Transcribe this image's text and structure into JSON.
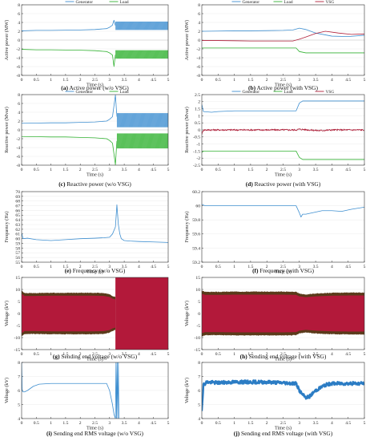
{
  "colors": {
    "generator": "#3f8fd0",
    "load": "#33b233",
    "vsg": "#b0203a",
    "voltage_fill": "#b3193a",
    "voltage_edge": "#5a3a1a"
  },
  "chart_data": [
    {
      "id": "a",
      "type": "line",
      "caption_label": "(a)",
      "caption_text": "Active power (w/o VSG)",
      "xlabel": "Time (s)",
      "ylabel": "Active power (MW)",
      "xlim": [
        0,
        5
      ],
      "ylim": [
        -8,
        8
      ],
      "xticks": [
        "0",
        "0.5",
        "1",
        "1.5",
        "2",
        "2.5",
        "3",
        "3.5",
        "4",
        "4.5",
        "5"
      ],
      "yticks": [
        "-8",
        "-6",
        "-4",
        "-2",
        "0",
        "2",
        "4",
        "6",
        "8"
      ],
      "ytick_values": [
        -8,
        -6,
        -4,
        -2,
        0,
        2,
        4,
        6,
        8
      ],
      "legend": [
        "Generator",
        "Load"
      ],
      "series": [
        {
          "name": "Generator",
          "color": "#3f8fd0",
          "band_after": 3.2,
          "band_low": 2.3,
          "band_high": 4.2,
          "x": [
            0,
            0.5,
            1,
            1.5,
            2,
            2.5,
            2.9,
            3.0,
            3.1,
            3.15,
            3.2
          ],
          "y": [
            2.1,
            2.2,
            2.2,
            2.25,
            2.3,
            2.4,
            2.6,
            2.9,
            3.4,
            4.5,
            3.3
          ]
        },
        {
          "name": "Load",
          "color": "#33b233",
          "band_after": 3.2,
          "band_low": -4.2,
          "band_high": -2.3,
          "x": [
            0,
            0.5,
            1,
            1.5,
            2,
            2.5,
            2.9,
            3.0,
            3.1,
            3.15,
            3.2
          ],
          "y": [
            -2.1,
            -2.2,
            -2.2,
            -2.25,
            -2.3,
            -2.4,
            -2.6,
            -2.9,
            -3.4,
            -6.0,
            -3.3
          ]
        }
      ]
    },
    {
      "id": "b",
      "type": "line",
      "caption_label": "(b)",
      "caption_text": "Active power (with VSG)",
      "xlabel": "Time (s)",
      "ylabel": "Active power (MW)",
      "xlim": [
        0,
        5
      ],
      "ylim": [
        -8,
        8
      ],
      "xticks": [
        "0",
        "0.5",
        "1",
        "1.5",
        "2",
        "2.5",
        "3",
        "3.5",
        "4",
        "4.5",
        "5"
      ],
      "yticks": [
        "-8",
        "-6",
        "-4",
        "-2",
        "0",
        "2",
        "4",
        "6",
        "8"
      ],
      "ytick_values": [
        -8,
        -6,
        -4,
        -2,
        0,
        2,
        4,
        6,
        8
      ],
      "legend": [
        "Generator",
        "Load",
        "VSG"
      ],
      "series": [
        {
          "name": "Generator",
          "color": "#3f8fd0",
          "x": [
            0,
            0.5,
            1,
            1.5,
            2,
            2.5,
            2.8,
            3.0,
            3.2,
            3.5,
            4.0,
            4.5,
            5.0
          ],
          "y": [
            2.0,
            2.05,
            2.1,
            2.1,
            2.15,
            2.2,
            2.3,
            2.7,
            2.4,
            1.6,
            0.9,
            0.8,
            1.1
          ]
        },
        {
          "name": "Load",
          "color": "#33b233",
          "x": [
            0,
            0.5,
            1,
            1.5,
            2,
            2.5,
            2.9,
            3.0,
            3.2,
            3.5,
            4.0,
            4.5,
            5.0
          ],
          "y": [
            -1.8,
            -1.8,
            -1.8,
            -1.8,
            -1.8,
            -1.8,
            -1.8,
            -2.6,
            -2.9,
            -2.9,
            -2.9,
            -2.9,
            -2.9
          ]
        },
        {
          "name": "VSG",
          "color": "#b0203a",
          "x": [
            0,
            0.5,
            1,
            1.5,
            2,
            2.5,
            2.8,
            3.0,
            3.2,
            3.5,
            3.8,
            4.2,
            4.6,
            5.0
          ],
          "y": [
            -0.1,
            -0.1,
            -0.15,
            -0.2,
            -0.2,
            -0.2,
            -0.2,
            0.2,
            0.7,
            1.5,
            2.0,
            1.6,
            1.3,
            1.4
          ]
        }
      ]
    },
    {
      "id": "c",
      "type": "line",
      "caption_label": "(c)",
      "caption_text": "Reactive power (w/o VSG)",
      "xlabel": "Time (s)",
      "ylabel": "Reactive power (Mvar)",
      "xlim": [
        0,
        5
      ],
      "ylim": [
        -8,
        8
      ],
      "xticks": [
        "0",
        "0.5",
        "1",
        "1.5",
        "2",
        "2.5",
        "3",
        "3.5",
        "4",
        "4.5",
        "5"
      ],
      "yticks": [
        "-8",
        "-6",
        "-4",
        "-2",
        "0",
        "2",
        "4",
        "6",
        "8"
      ],
      "ytick_values": [
        -8,
        -6,
        -4,
        -2,
        0,
        2,
        4,
        6,
        8
      ],
      "legend": [
        "Generator",
        "Load"
      ],
      "series": [
        {
          "name": "Generator",
          "color": "#3f8fd0",
          "band_after": 3.25,
          "band_low": 0.6,
          "band_high": 3.8,
          "x": [
            0,
            0.5,
            1,
            1.5,
            2,
            2.5,
            2.9,
            3.0,
            3.1,
            3.2,
            3.25
          ],
          "y": [
            1.5,
            1.55,
            1.6,
            1.6,
            1.7,
            1.8,
            2.0,
            2.4,
            3.0,
            7.9,
            3.0
          ]
        },
        {
          "name": "Load",
          "color": "#33b233",
          "band_after": 3.25,
          "band_low": -4.2,
          "band_high": -0.8,
          "x": [
            0,
            0.5,
            1,
            1.5,
            2,
            2.5,
            2.9,
            3.0,
            3.1,
            3.2,
            3.25
          ],
          "y": [
            -1.5,
            -1.55,
            -1.6,
            -1.6,
            -1.7,
            -1.8,
            -2.0,
            -2.4,
            -3.0,
            -7.9,
            -2.5
          ]
        }
      ]
    },
    {
      "id": "d",
      "type": "line",
      "caption_label": "(d)",
      "caption_text": "Reactive power (with VSG)",
      "xlabel": "Time (s)",
      "ylabel": "Reactive power (Mvar)",
      "xlim": [
        0,
        5
      ],
      "ylim": [
        -2.5,
        2.5
      ],
      "xticks": [
        "0",
        "0.5",
        "1",
        "1.5",
        "2",
        "2.5",
        "3",
        "3.5",
        "4",
        "4.5",
        "5"
      ],
      "yticks": [
        "-2.5",
        "-2",
        "-1.5",
        "-1",
        "-0.5",
        "0",
        "0.5",
        "1",
        "1.5",
        "2",
        "2.5"
      ],
      "ytick_values": [
        -2.5,
        -2,
        -1.5,
        -1,
        -0.5,
        0,
        0.5,
        1,
        1.5,
        2,
        2.5
      ],
      "legend": [
        "Generator",
        "Load",
        "VSG"
      ],
      "series": [
        {
          "name": "Generator",
          "color": "#3f8fd0",
          "x": [
            0,
            0.05,
            0.3,
            0.5,
            1,
            1.5,
            2,
            2.5,
            2.9,
            3.0,
            3.1,
            3.5,
            4,
            4.5,
            5
          ],
          "y": [
            1.8,
            1.3,
            1.25,
            1.3,
            1.35,
            1.35,
            1.35,
            1.35,
            1.35,
            1.9,
            2.05,
            2.05,
            2.05,
            2.05,
            2.05
          ]
        },
        {
          "name": "Load",
          "color": "#33b233",
          "x": [
            0,
            0.05,
            0.5,
            1,
            1.5,
            2,
            2.5,
            2.9,
            3.0,
            3.1,
            3.5,
            4,
            4.5,
            5
          ],
          "y": [
            -1.6,
            -1.5,
            -1.5,
            -1.5,
            -1.5,
            -1.5,
            -1.5,
            -1.5,
            -1.95,
            -2.1,
            -2.1,
            -2.1,
            -2.1,
            -2.1
          ]
        },
        {
          "name": "VSG",
          "color": "#b0203a",
          "noise": 0.06,
          "x": [
            0,
            0.05,
            0.5,
            1,
            1.5,
            2,
            2.5,
            2.9,
            3.0,
            3.3,
            3.6,
            4,
            4.5,
            5
          ],
          "y": [
            -0.3,
            0.0,
            0.0,
            0.0,
            0.0,
            0.0,
            0.0,
            0.0,
            0.05,
            0.0,
            -0.05,
            0.0,
            0.0,
            0.0
          ]
        }
      ]
    },
    {
      "id": "e",
      "type": "line",
      "caption_label": "(e)",
      "caption_text": "Frequency (w/o VSG)",
      "xlabel": "Time (s)",
      "ylabel": "Frequency (Hz)",
      "xlim": [
        0,
        5
      ],
      "ylim": [
        55,
        70
      ],
      "xticks": [
        "0",
        "0.5",
        "1",
        "1.5",
        "2",
        "2.5",
        "3",
        "3.5",
        "4",
        "4.5",
        "5"
      ],
      "yticks": [
        "55",
        "56",
        "57",
        "58",
        "59",
        "60",
        "61",
        "62",
        "63",
        "64",
        "65",
        "66",
        "67",
        "68",
        "69",
        "70"
      ],
      "ytick_values": [
        55,
        56,
        57,
        58,
        59,
        60,
        61,
        62,
        63,
        64,
        65,
        66,
        67,
        68,
        69,
        70
      ],
      "legend": [],
      "series": [
        {
          "name": "",
          "color": "#3f8fd0",
          "x": [
            0,
            0.05,
            0.2,
            0.5,
            1,
            1.5,
            2,
            2.5,
            2.8,
            3.0,
            3.1,
            3.2,
            3.25,
            3.3,
            3.35,
            3.4,
            3.5,
            3.7,
            4,
            4.5,
            5
          ],
          "y": [
            61.2,
            60.0,
            60.1,
            59.8,
            59.6,
            59.8,
            60.0,
            60.1,
            60.2,
            60.3,
            61.0,
            62.5,
            67.2,
            63.0,
            61.0,
            60.0,
            59.6,
            59.5,
            59.4,
            59.3,
            59.2
          ]
        }
      ]
    },
    {
      "id": "f",
      "type": "line",
      "caption_label": "(f)",
      "caption_text": "Frequency (with VSG)",
      "xlabel": "Time (s)",
      "ylabel": "Frequency (Hz)",
      "xlim": [
        0,
        5
      ],
      "ylim": [
        59.2,
        60.2
      ],
      "xticks": [
        "0",
        "0.5",
        "1",
        "1.5",
        "2",
        "2.5",
        "3",
        "3.5",
        "4",
        "4.5",
        "5"
      ],
      "yticks": [
        "59.2",
        "59.4",
        "59.6",
        "59.8",
        "60",
        "60.2"
      ],
      "ytick_values": [
        59.2,
        59.4,
        59.6,
        59.8,
        60,
        60.2
      ],
      "legend": [],
      "series": [
        {
          "name": "",
          "color": "#3f8fd0",
          "x": [
            0,
            0.1,
            0.5,
            1,
            1.5,
            2,
            2.5,
            2.9,
            3.0,
            3.05,
            3.1,
            3.2,
            3.4,
            3.7,
            4.0,
            4.3,
            4.6,
            5
          ],
          "y": [
            60.02,
            60.0,
            60.0,
            60.0,
            60.0,
            60.0,
            60.0,
            60.0,
            59.9,
            59.84,
            59.88,
            59.88,
            59.9,
            59.93,
            59.93,
            59.92,
            59.95,
            59.98
          ]
        }
      ]
    },
    {
      "id": "g",
      "type": "area",
      "caption_label": "(g)",
      "caption_text": "Sending end voltage (w/o VSG)",
      "xlabel": "Time (s)",
      "ylabel": "Voltage (kV)",
      "xlim": [
        0,
        5
      ],
      "ylim": [
        -15,
        15
      ],
      "xticks": [
        "0",
        "0.5",
        "1",
        "1.5",
        "2",
        "2.5",
        "3",
        "3.5",
        "4",
        "4.5",
        "5"
      ],
      "yticks": [
        "-15",
        "-10",
        "-5",
        "0",
        "5",
        "10",
        "15"
      ],
      "ytick_values": [
        -15,
        -10,
        -5,
        0,
        5,
        10,
        15
      ],
      "legend": [],
      "series": [
        {
          "name": "",
          "color": "#b3193a",
          "envelope": true,
          "full_after": 3.2,
          "x": [
            0,
            0.1,
            0.5,
            1,
            1.5,
            2,
            2.5,
            2.8,
            3.0,
            3.1,
            3.2
          ],
          "amp": [
            9.5,
            8.5,
            8.5,
            8.6,
            8.6,
            8.6,
            8.6,
            8.5,
            8.0,
            7.2,
            6.8
          ]
        }
      ]
    },
    {
      "id": "h",
      "type": "area",
      "caption_label": "(h)",
      "caption_text": "Sending end voltage (with VSG)",
      "xlabel": "Time (s)",
      "ylabel": "Voltage (kV)",
      "xlim": [
        0,
        5
      ],
      "ylim": [
        -15,
        15
      ],
      "xticks": [
        "0",
        "0.5",
        "1",
        "1.5",
        "2",
        "2.5",
        "3",
        "3.5",
        "4",
        "4.5",
        "5"
      ],
      "yticks": [
        "-15",
        "-10",
        "-5",
        "0",
        "5",
        "10",
        "15"
      ],
      "ytick_values": [
        -15,
        -10,
        -5,
        0,
        5,
        10,
        15
      ],
      "legend": [],
      "series": [
        {
          "name": "",
          "color": "#b3193a",
          "envelope": true,
          "x": [
            0,
            0.1,
            0.5,
            1,
            1.5,
            2,
            2.5,
            2.9,
            3.0,
            3.2,
            3.5,
            4.0,
            4.5,
            5
          ],
          "amp": [
            9.5,
            9.0,
            9.0,
            9.1,
            9.1,
            9.1,
            9.1,
            9.0,
            8.3,
            7.9,
            8.3,
            8.6,
            8.7,
            8.7
          ]
        }
      ]
    },
    {
      "id": "i",
      "type": "line",
      "caption_label": "(i)",
      "caption_text": "Sending end RMS voltage (w/o VSG)",
      "xlabel": "Time (s)",
      "ylabel": "Voltage (kV)",
      "xlim": [
        0,
        5
      ],
      "ylim": [
        4,
        8
      ],
      "xticks": [
        "0",
        "0.5",
        "1",
        "1.5",
        "2",
        "2.5",
        "3",
        "3.5",
        "4",
        "4.5",
        "5"
      ],
      "yticks": [
        "4",
        "5",
        "6",
        "7",
        "8"
      ],
      "ytick_values": [
        4,
        5,
        6,
        7,
        8
      ],
      "legend": [],
      "series": [
        {
          "name": "",
          "color": "#3f8fd0",
          "x": [
            0,
            0.02,
            0.05,
            0.1,
            0.2,
            0.4,
            0.6,
            1,
            1.5,
            2,
            2.5,
            2.9,
            3.0,
            3.1,
            3.15,
            3.2,
            3.22,
            3.24,
            3.26,
            3.28,
            3.3,
            3.32
          ],
          "y": [
            8.0,
            6.0,
            5.9,
            5.9,
            6.0,
            6.3,
            6.45,
            6.5,
            6.5,
            6.5,
            6.5,
            6.5,
            6.0,
            5.0,
            4.3,
            4.0,
            8.0,
            4.0,
            8.0,
            4.0,
            8.0,
            4.0
          ]
        }
      ]
    },
    {
      "id": "j",
      "type": "line",
      "caption_label": "(j)",
      "caption_text": "Sending end RMS voltage (with VSG)",
      "xlabel": "Time (s)",
      "ylabel": "Voltage (kV)",
      "xlim": [
        0,
        5
      ],
      "ylim": [
        4,
        8
      ],
      "xticks": [
        "0",
        "0.5",
        "1",
        "1.5",
        "2",
        "2.5",
        "3",
        "3.5",
        "4",
        "4.5",
        "5"
      ],
      "yticks": [
        "4",
        "5",
        "6",
        "7",
        "8"
      ],
      "ytick_values": [
        4,
        5,
        6,
        7,
        8
      ],
      "legend": [],
      "series": [
        {
          "name": "",
          "color": "#2b7cc4",
          "thick": true,
          "noise": 0.12,
          "x": [
            0,
            0.05,
            0.15,
            0.5,
            1,
            1.5,
            2,
            2.5,
            2.9,
            3.0,
            3.1,
            3.2,
            3.3,
            3.5,
            3.8,
            4.0,
            4.3,
            4.6,
            5
          ],
          "y": [
            4.6,
            6.4,
            6.6,
            6.55,
            6.6,
            6.6,
            6.6,
            6.55,
            6.5,
            6.0,
            5.7,
            5.5,
            5.55,
            6.0,
            6.4,
            6.5,
            6.5,
            6.5,
            6.5
          ]
        }
      ]
    }
  ]
}
